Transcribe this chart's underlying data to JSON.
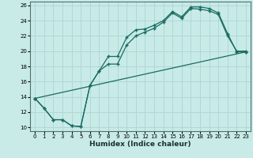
{
  "xlabel": "Humidex (Indice chaleur)",
  "bg_color": "#c8ebe8",
  "grid_color": "#b0d8d4",
  "line_color": "#1a6b60",
  "xlim": [
    -0.5,
    23.5
  ],
  "ylim": [
    9.5,
    26.5
  ],
  "xticks": [
    0,
    1,
    2,
    3,
    4,
    5,
    6,
    7,
    8,
    9,
    10,
    11,
    12,
    13,
    14,
    15,
    16,
    17,
    18,
    19,
    20,
    21,
    22,
    23
  ],
  "yticks": [
    10,
    12,
    14,
    16,
    18,
    20,
    22,
    24,
    26
  ],
  "line1_x": [
    0,
    1,
    2,
    3,
    4,
    5,
    6,
    7,
    8,
    9,
    10,
    11,
    12,
    13,
    14,
    15,
    16,
    17,
    18,
    19,
    20,
    21,
    22,
    23
  ],
  "line1_y": [
    13.8,
    12.5,
    11.0,
    11.0,
    10.2,
    10.1,
    15.5,
    17.4,
    19.3,
    19.3,
    21.8,
    22.8,
    22.9,
    23.4,
    24.0,
    25.2,
    24.5,
    25.8,
    25.8,
    25.6,
    25.0,
    22.3,
    19.9,
    19.9
  ],
  "line2_x": [
    0,
    1,
    2,
    3,
    4,
    5,
    6,
    7,
    8,
    9,
    10,
    11,
    12,
    13,
    14,
    15,
    16,
    17,
    18,
    19,
    20,
    21,
    22,
    23
  ],
  "line2_y": [
    13.8,
    12.5,
    11.0,
    11.0,
    10.2,
    10.1,
    15.5,
    17.4,
    18.3,
    18.3,
    20.8,
    22.0,
    22.5,
    23.0,
    23.8,
    25.0,
    24.3,
    25.6,
    25.5,
    25.3,
    24.8,
    22.0,
    20.0,
    20.0
  ],
  "line3_x": [
    0,
    23
  ],
  "line3_y": [
    13.8,
    19.9
  ]
}
